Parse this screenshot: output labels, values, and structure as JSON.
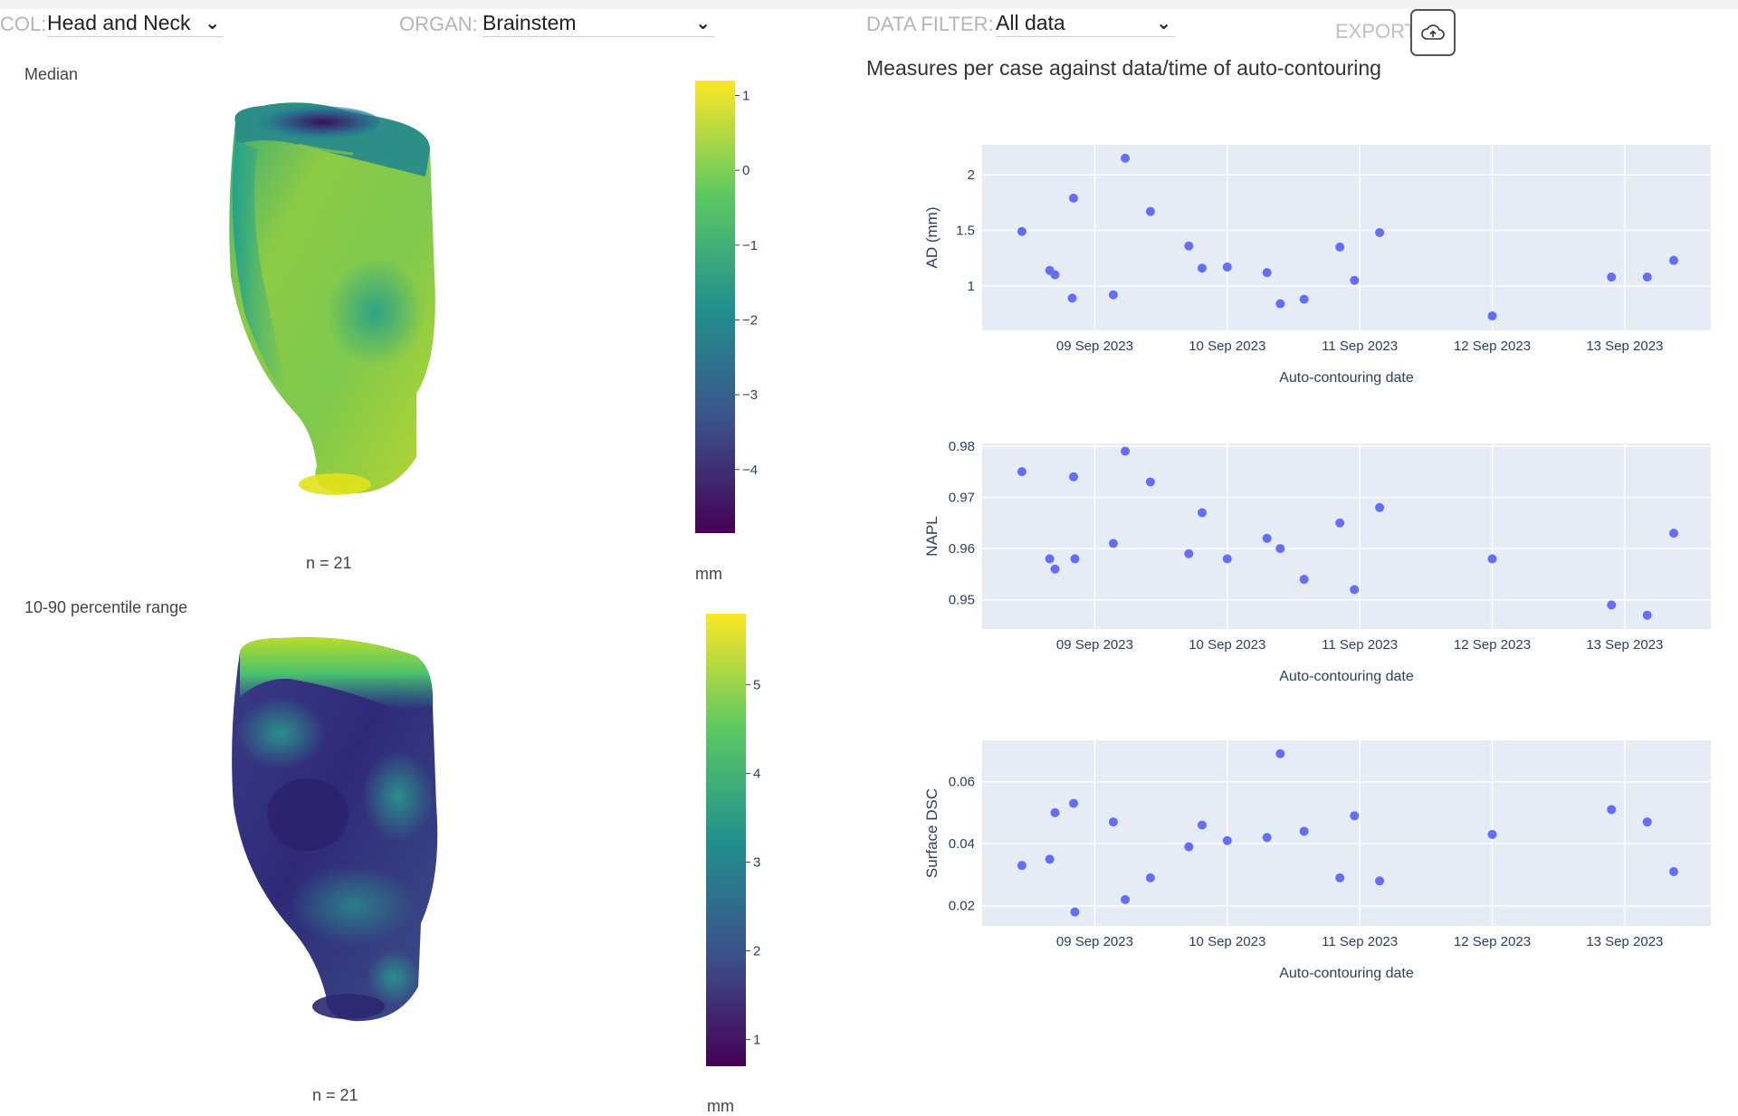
{
  "toolbar": {
    "col_label": "COL:",
    "col_value": "Head and Neck",
    "organ_label": "ORGAN:",
    "organ_value": "Brainstem",
    "filter_label": "DATA FILTER:",
    "filter_value": "All data",
    "export_label": "EXPORT"
  },
  "left": {
    "median_title": "Median",
    "median_n": "n = 21",
    "median_unit": "mm",
    "median_colorbar_ticks": [
      "1",
      "0",
      "−1",
      "−2",
      "−3",
      "−4"
    ],
    "median_colorbar_values": [
      1,
      0,
      -1,
      -2,
      -3,
      -4
    ],
    "median_colorbar_range": [
      -4.85,
      1.2
    ],
    "range_title": "10-90 percentile range",
    "range_n": "n = 21",
    "range_unit": "mm",
    "range_colorbar_ticks": [
      "5",
      "4",
      "3",
      "2",
      "1"
    ],
    "range_colorbar_values": [
      5,
      4,
      3,
      2,
      1
    ],
    "range_colorbar_range": [
      0.7,
      5.8
    ]
  },
  "right": {
    "section_title": "Measures per case against data/time of auto-contouring"
  },
  "colors": {
    "marker": "#636efa",
    "plot_bg": "#e5ecf6",
    "grid": "#ffffff",
    "viridis": [
      "#440154",
      "#3b528b",
      "#21918c",
      "#5ec962",
      "#fde725"
    ]
  },
  "chart_data": [
    {
      "type": "scatter",
      "ylabel": "AD (mm)",
      "xlabel": "Auto-contouring date",
      "x_ticks": [
        "09 Sep 2023",
        "10 Sep 2023",
        "11 Sep 2023",
        "12 Sep 2023",
        "13 Sep 2023"
      ],
      "x_tick_values": [
        1,
        2,
        3,
        4,
        5
      ],
      "xlim": [
        0.15,
        5.65
      ],
      "y_ticks": [
        "1",
        "1.5",
        "2"
      ],
      "y_tick_values": [
        1,
        1.5,
        2
      ],
      "ylim": [
        0.6,
        2.27
      ],
      "grid": true,
      "x": [
        0.45,
        0.66,
        0.7,
        0.83,
        0.84,
        1.14,
        1.23,
        1.42,
        1.71,
        1.81,
        2.0,
        2.3,
        2.4,
        2.58,
        2.85,
        2.96,
        3.15,
        4.0,
        4.9,
        5.17,
        5.37
      ],
      "y": [
        1.49,
        1.14,
        1.1,
        0.89,
        1.79,
        0.92,
        2.15,
        1.67,
        1.36,
        1.16,
        1.17,
        1.12,
        0.84,
        0.88,
        1.35,
        1.05,
        1.48,
        0.73,
        1.08,
        1.08,
        1.23
      ]
    },
    {
      "type": "scatter",
      "ylabel": "NAPL",
      "xlabel": "Auto-contouring date",
      "x_ticks": [
        "09 Sep 2023",
        "10 Sep 2023",
        "11 Sep 2023",
        "12 Sep 2023",
        "13 Sep 2023"
      ],
      "x_tick_values": [
        1,
        2,
        3,
        4,
        5
      ],
      "xlim": [
        0.15,
        5.65
      ],
      "y_ticks": [
        "0.95",
        "0.96",
        "0.97",
        "0.98"
      ],
      "y_tick_values": [
        0.95,
        0.96,
        0.97,
        0.98
      ],
      "ylim": [
        0.9443,
        0.9805
      ],
      "grid": true,
      "x": [
        0.45,
        0.66,
        0.7,
        0.84,
        0.85,
        1.14,
        1.23,
        1.42,
        1.71,
        1.81,
        2.0,
        2.3,
        2.4,
        2.58,
        2.85,
        2.96,
        3.15,
        4.0,
        4.9,
        5.17,
        5.37
      ],
      "y": [
        0.975,
        0.958,
        0.956,
        0.974,
        0.958,
        0.961,
        0.979,
        0.973,
        0.959,
        0.967,
        0.958,
        0.962,
        0.96,
        0.954,
        0.965,
        0.952,
        0.968,
        0.958,
        0.949,
        0.947,
        0.963
      ]
    },
    {
      "type": "scatter",
      "ylabel": "Surface DSC",
      "xlabel": "Auto-contouring date",
      "x_ticks": [
        "09 Sep 2023",
        "10 Sep 2023",
        "11 Sep 2023",
        "12 Sep 2023",
        "13 Sep 2023"
      ],
      "x_tick_values": [
        1,
        2,
        3,
        4,
        5
      ],
      "xlim": [
        0.15,
        5.65
      ],
      "y_ticks": [
        "0.02",
        "0.04",
        "0.06"
      ],
      "y_tick_values": [
        0.02,
        0.04,
        0.06
      ],
      "ylim": [
        0.0135,
        0.0733
      ],
      "grid": true,
      "x": [
        0.45,
        0.66,
        0.7,
        0.84,
        0.85,
        1.14,
        1.23,
        1.42,
        1.71,
        1.81,
        2.0,
        2.3,
        2.4,
        2.58,
        2.85,
        2.96,
        3.15,
        4.0,
        4.9,
        5.17,
        5.37
      ],
      "y": [
        0.033,
        0.035,
        0.05,
        0.053,
        0.018,
        0.047,
        0.022,
        0.029,
        0.039,
        0.046,
        0.041,
        0.042,
        0.069,
        0.044,
        0.029,
        0.049,
        0.028,
        0.043,
        0.051,
        0.047,
        0.031
      ]
    }
  ]
}
